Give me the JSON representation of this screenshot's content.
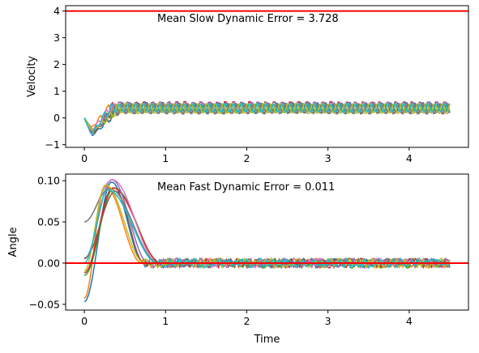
{
  "chart_data": [
    {
      "type": "line",
      "title": "",
      "xlabel": "",
      "ylabel": "Velocity",
      "xlim": [
        -0.23,
        4.73
      ],
      "ylim": [
        -1.1,
        4.2
      ],
      "xticks": [
        "0",
        "1",
        "2",
        "3",
        "4"
      ],
      "yticks": [
        "−1",
        "0",
        "1",
        "2",
        "3",
        "4"
      ],
      "annotation": "Mean Slow Dynamic Error = 3.728",
      "reference_line": {
        "y": 4.0,
        "color": "#ff0000"
      },
      "series_count": 10,
      "series_color_cycle": [
        "#1f77b4",
        "#ff7f0e",
        "#2ca02c",
        "#d62728",
        "#9467bd",
        "#8c564b",
        "#e377c2",
        "#7f7f7f",
        "#bcbd22",
        "#17becf"
      ],
      "trace_shape": {
        "x_range": [
          0,
          4.5
        ],
        "start_y": 0.0,
        "dip_min_y": -0.8,
        "dip_at_x": 0.08,
        "rise_end_x": 0.4,
        "steady_oscillation_band": [
          0.15,
          0.6
        ],
        "oscillation_period": 0.1
      }
    },
    {
      "type": "line",
      "title": "",
      "xlabel": "Time",
      "ylabel": "Angle",
      "xlim": [
        -0.23,
        4.73
      ],
      "ylim": [
        -0.057,
        0.108
      ],
      "xticks": [
        "0",
        "1",
        "2",
        "3",
        "4"
      ],
      "yticks": [
        "−0.05",
        "0.00",
        "0.05",
        "0.10"
      ],
      "annotation": "Mean Fast Dynamic Error = 0.011",
      "reference_line": {
        "y": 0.0,
        "color": "#ff0000"
      },
      "series_count": 10,
      "series_color_cycle": [
        "#1f77b4",
        "#ff7f0e",
        "#2ca02c",
        "#d62728",
        "#9467bd",
        "#8c564b",
        "#e377c2",
        "#7f7f7f",
        "#bcbd22",
        "#17becf"
      ],
      "trace_shape": {
        "x_range": [
          0,
          4.5
        ],
        "start_y_range": [
          -0.047,
          0.05
        ],
        "peak_y_range": [
          0.085,
          0.102
        ],
        "peak_at_x_range": [
          0.25,
          0.4
        ],
        "settle_by_x": 0.9,
        "steady_noise": 0.006
      }
    }
  ]
}
